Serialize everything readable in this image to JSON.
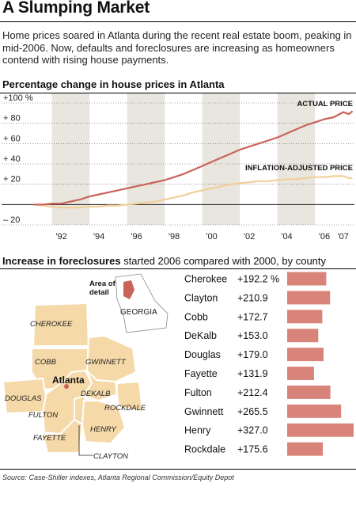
{
  "header": {
    "title": "A Slumping Market",
    "intro": "Home prices soared in Atlanta during the recent real estate boom, peaking in mid-2006. Now, defaults and foreclosures are increasing as homeowners contend with rising house payments."
  },
  "chart1": {
    "heading": "Percentage change in house prices in Atlanta",
    "ytick_labels": [
      "+100 %",
      "+ 80",
      "+ 60",
      "+ 40",
      "+ 20",
      "– 20"
    ],
    "xtick_labels": [
      "'92",
      "'94",
      "'96",
      "'98",
      "'00",
      "'02",
      "'04",
      "'06",
      "'07"
    ]
  },
  "chart2": {
    "heading_bold": "Increase in foreclosures",
    "heading_rest": " started 2006 compared with 2000, by county"
  },
  "map": {
    "inset_label_1": "Area of",
    "inset_label_2": "detail",
    "state_label": "GEORGIA",
    "city_label": "Atlanta",
    "counties": [
      "CHEROKEE",
      "COBB",
      "GWINNETT",
      "DOUGLAS",
      "DEKALB",
      "ROCKDALE",
      "FULTON",
      "HENRY",
      "FAYETTE",
      "CLAYTON"
    ]
  },
  "source": "Source: Case-Shiller indexes, Atlanta Regional Commission/Equity Depot",
  "colors": {
    "actual": "#c9645a",
    "adjusted": "#f2cf98",
    "band": "#e8e6df",
    "bar": "#d9847a",
    "county_fill": "#f5d9a8",
    "county_stroke": "#ffffff",
    "city_dot": "#c9645a"
  },
  "chart_data": [
    {
      "type": "line",
      "title": "Percentage change in house prices in Atlanta",
      "x_range": [
        1990.5,
        2007.6
      ],
      "ylim": [
        -20,
        100
      ],
      "ytick_values": [
        100,
        80,
        60,
        40,
        20,
        -20
      ],
      "xtick_values": [
        1992,
        1994,
        1996,
        1998,
        2000,
        2002,
        2004,
        2006,
        2007
      ],
      "shaded_bands": [
        [
          1991.5,
          1993.5
        ],
        [
          1995.5,
          1997.5
        ],
        [
          1999.5,
          2001.5
        ],
        [
          2003.5,
          2005.5
        ]
      ],
      "series": [
        {
          "name": "ACTUAL PRICE",
          "x": [
            1990.5,
            1991.0,
            1991.5,
            1992.0,
            1992.5,
            1993.0,
            1993.5,
            1994.0,
            1994.5,
            1995.0,
            1995.5,
            1996.0,
            1996.5,
            1997.0,
            1997.5,
            1998.0,
            1998.5,
            1999.0,
            1999.5,
            2000.0,
            2000.5,
            2001.0,
            2001.5,
            2002.0,
            2002.5,
            2003.0,
            2003.5,
            2004.0,
            2004.5,
            2005.0,
            2005.5,
            2006.0,
            2006.5,
            2007.0,
            2007.3,
            2007.5
          ],
          "values": [
            0,
            0,
            1,
            1,
            3,
            5,
            8,
            10,
            12,
            14,
            16,
            18,
            20,
            22,
            24,
            27,
            30,
            34,
            38,
            42,
            46,
            50,
            54,
            57,
            60,
            63,
            66,
            70,
            74,
            78,
            81,
            84,
            86,
            91,
            89,
            92
          ]
        },
        {
          "name": "INFLATION-ADJUSTED PRICE",
          "x": [
            1990.5,
            1991.0,
            1991.5,
            1992.0,
            1992.5,
            1993.0,
            1993.5,
            1994.0,
            1994.5,
            1995.0,
            1995.5,
            1996.0,
            1996.5,
            1997.0,
            1997.5,
            1998.0,
            1998.5,
            1999.0,
            1999.5,
            2000.0,
            2000.5,
            2001.0,
            2001.5,
            2002.0,
            2002.5,
            2003.0,
            2003.5,
            2004.0,
            2004.5,
            2005.0,
            2005.5,
            2006.0,
            2006.5,
            2007.0,
            2007.3,
            2007.5
          ],
          "values": [
            0,
            -1,
            -2,
            -3,
            -3,
            -3,
            -2,
            -2,
            -1,
            -1,
            0,
            1,
            2,
            3,
            5,
            7,
            9,
            12,
            14,
            16,
            18,
            20,
            21,
            22,
            23,
            23,
            24,
            25,
            25,
            26,
            27,
            27,
            28,
            28,
            26,
            26
          ]
        }
      ],
      "xlabel": "",
      "ylabel": ""
    },
    {
      "type": "bar",
      "orientation": "horizontal",
      "title": "Increase in foreclosures started 2006 compared with 2000, by county",
      "categories": [
        "Cherokee",
        "Clayton",
        "Cobb",
        "DeKalb",
        "Douglas",
        "Fayette",
        "Fulton",
        "Gwinnett",
        "Henry",
        "Rockdale"
      ],
      "value_labels": [
        "+192.2 %",
        "+210.9",
        "+172.7",
        "+153.0",
        "+179.0",
        "+131.9",
        "+212.4",
        "+265.5",
        "+327.0",
        "+175.6"
      ],
      "values": [
        192.2,
        210.9,
        172.7,
        153.0,
        179.0,
        131.9,
        212.4,
        265.5,
        327.0,
        175.6
      ],
      "xlim": [
        0,
        327.0
      ]
    }
  ]
}
